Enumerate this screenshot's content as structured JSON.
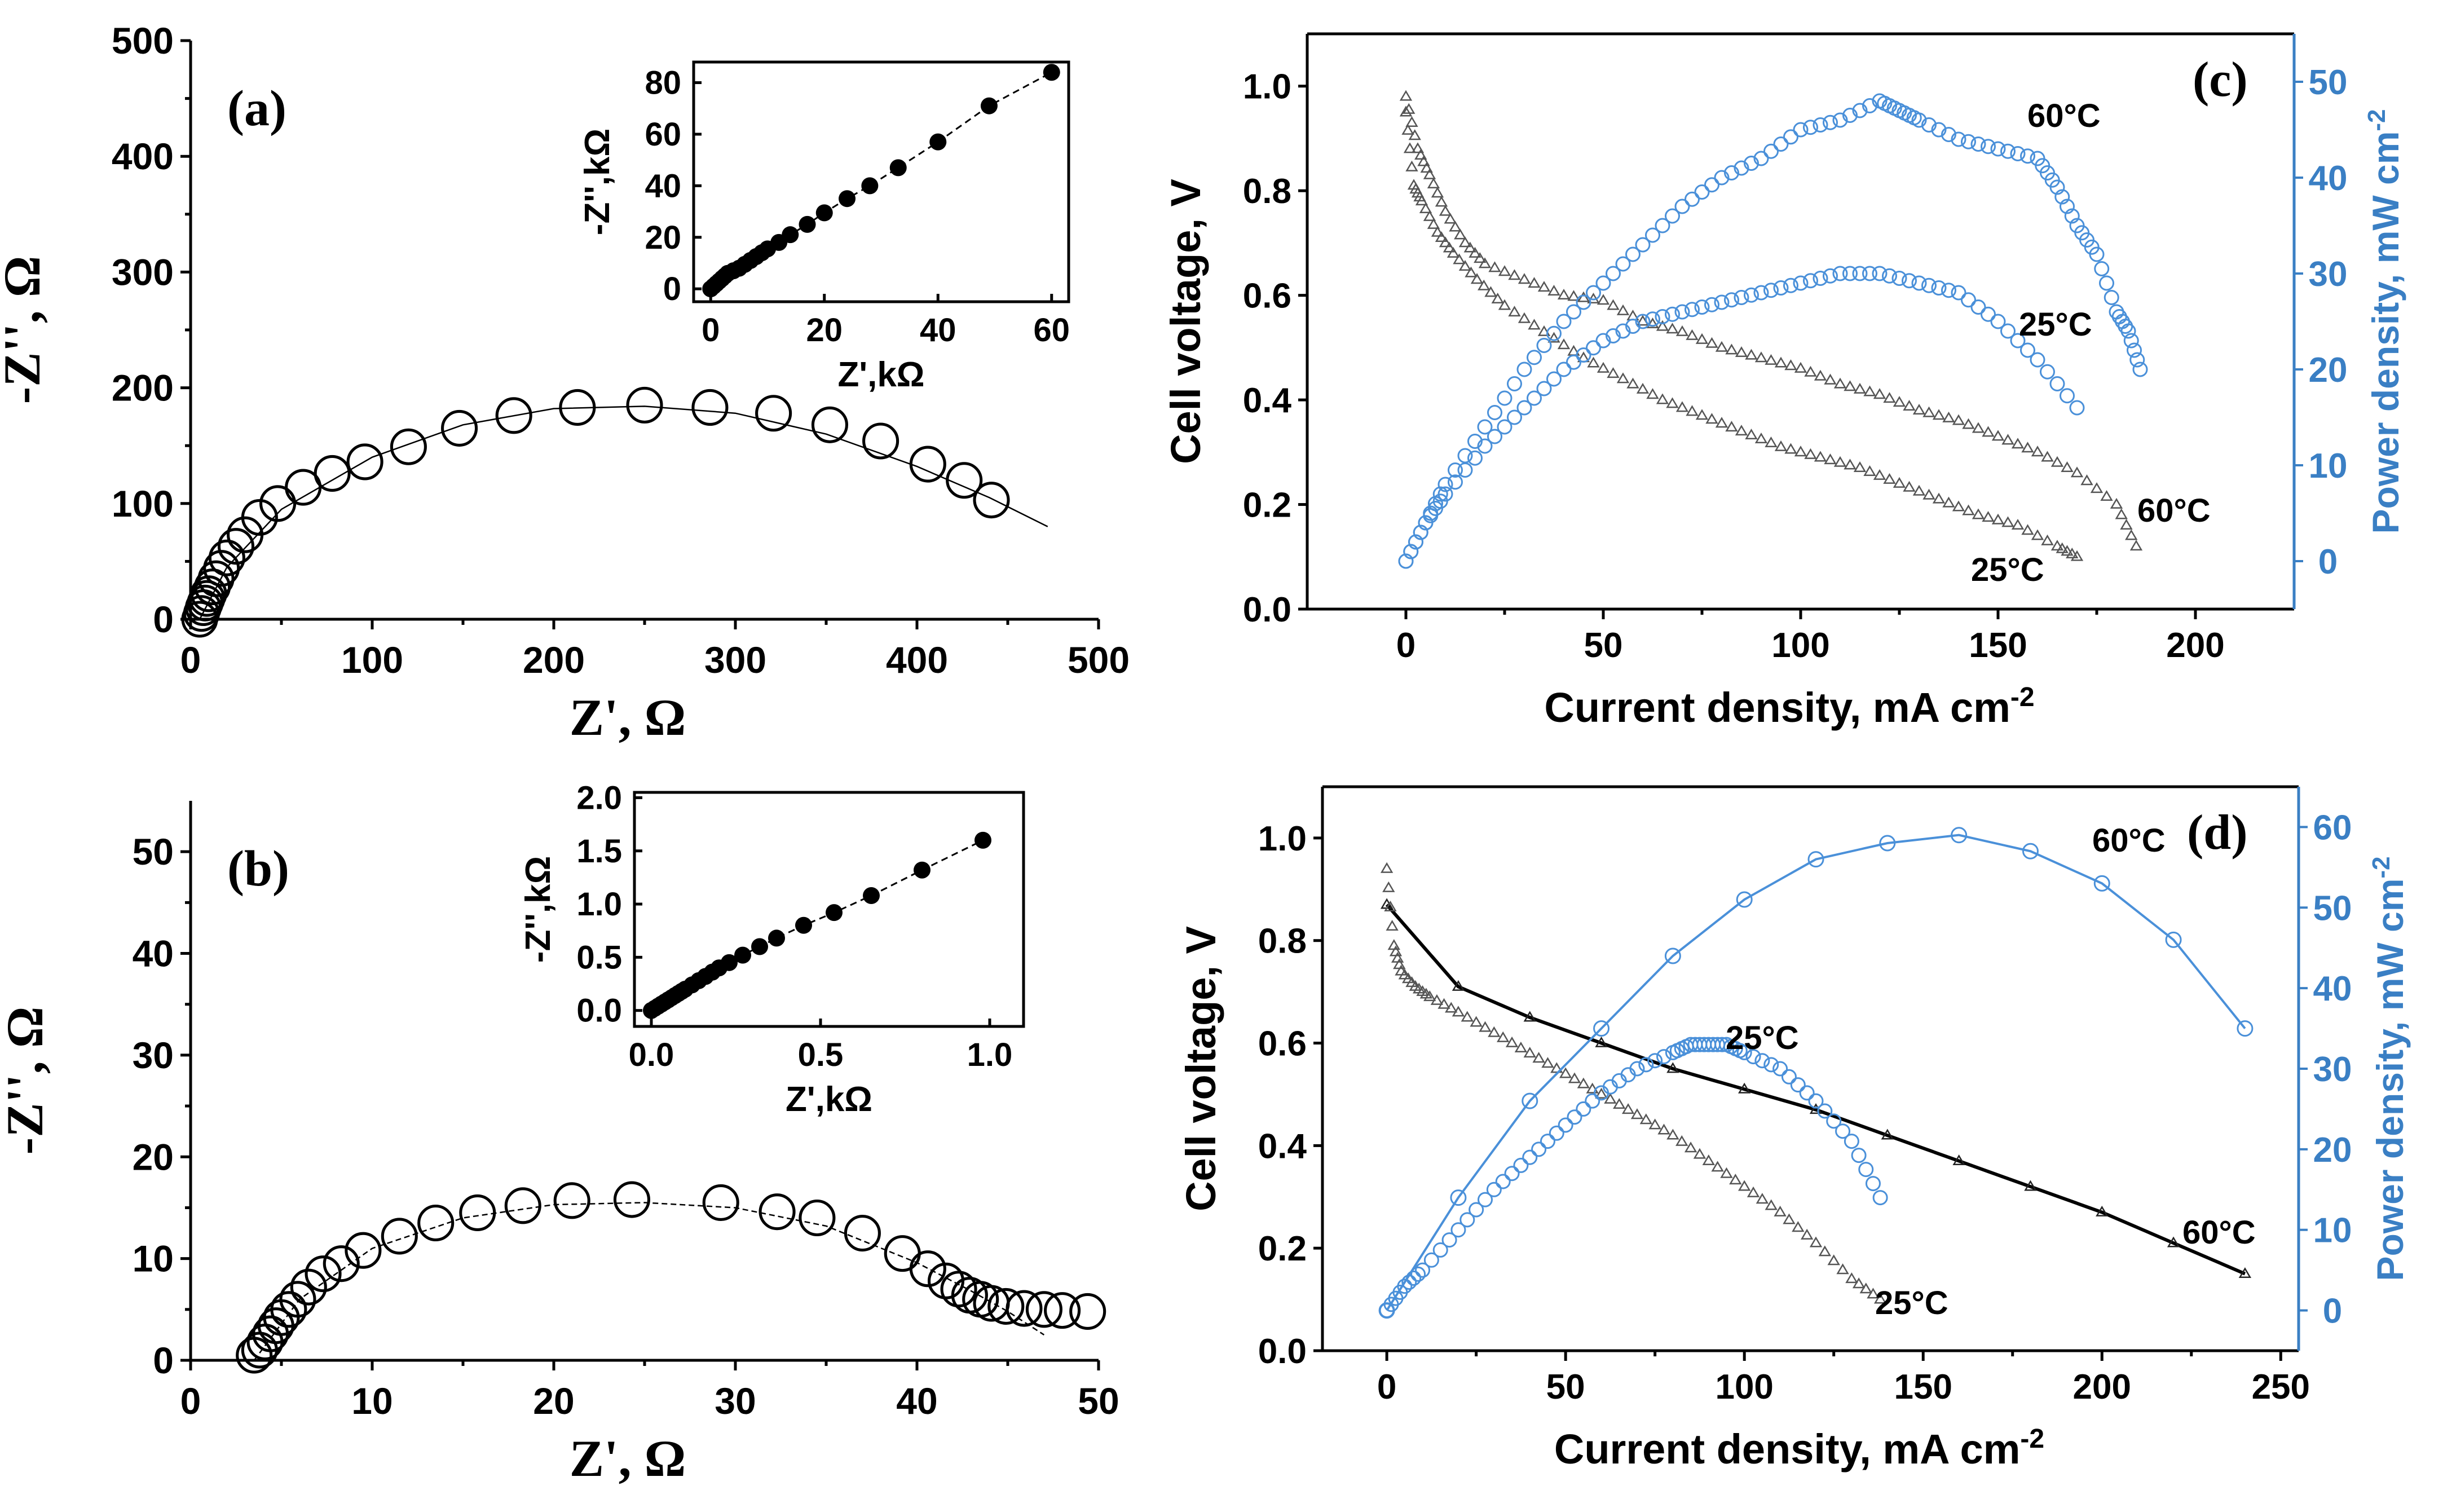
{
  "colors": {
    "black": "#000000",
    "blue": "#4a90d9",
    "blue_axis": "#3a7fc4",
    "gray": "#555555"
  },
  "chart_data": [
    {
      "id": "a",
      "type": "scatter",
      "panel_label": "(a)",
      "xlabel": "Z', Ω",
      "ylabel": "-Z'', Ω",
      "xlim": [
        0,
        500
      ],
      "ylim": [
        0,
        500
      ],
      "xticks": [
        "0",
        "100",
        "200",
        "300",
        "400",
        "500"
      ],
      "yticks": [
        "0",
        "100",
        "200",
        "300",
        "400",
        "500"
      ],
      "series": [
        {
          "marker": "open-circle",
          "x": [
            5,
            6,
            7,
            8,
            9,
            10,
            12,
            14,
            17,
            20,
            25,
            30,
            38,
            48,
            62,
            78,
            96,
            120,
            148,
            178,
            213,
            250,
            286,
            321,
            352,
            380,
            406,
            426,
            441
          ],
          "y": [
            0,
            5,
            10,
            14,
            18,
            22,
            28,
            35,
            44,
            53,
            63,
            73,
            88,
            100,
            114,
            126,
            136,
            149,
            165,
            176,
            183,
            185,
            183,
            178,
            168,
            154,
            134,
            120,
            103
          ]
        }
      ],
      "fit_line": {
        "x": [
          5,
          20,
          50,
          100,
          150,
          200,
          250,
          300,
          350,
          400,
          440,
          472
        ],
        "y": [
          0,
          45,
          95,
          140,
          168,
          182,
          184,
          178,
          160,
          132,
          105,
          80
        ]
      },
      "inset": {
        "xlabel": "Z',kΩ",
        "ylabel": "-Z'',kΩ",
        "xlim": [
          -3,
          63
        ],
        "ylim": [
          -5,
          88
        ],
        "xticks": [
          "0",
          "20",
          "40",
          "60"
        ],
        "yticks": [
          "0",
          "20",
          "40",
          "60",
          "80"
        ],
        "x": [
          0,
          0.5,
          1,
          1.5,
          2,
          2.5,
          3,
          4,
          5,
          6,
          7,
          8,
          9,
          10,
          12,
          14,
          17,
          20,
          24,
          28,
          33,
          40,
          49,
          60
        ],
        "y": [
          0,
          1,
          2,
          3,
          4,
          5,
          6,
          7,
          8,
          9.5,
          11,
          12.5,
          14,
          15.5,
          18,
          21,
          25,
          29.5,
          35,
          40,
          47,
          57,
          71,
          84
        ]
      }
    },
    {
      "id": "b",
      "type": "scatter",
      "panel_label": "(b)",
      "xlabel": "Z', Ω",
      "ylabel": "-Z'', Ω",
      "xlim": [
        0,
        50
      ],
      "ylim": [
        0,
        55
      ],
      "xticks": [
        "0",
        "10",
        "20",
        "30",
        "40",
        "50"
      ],
      "yticks": [
        "0",
        "10",
        "20",
        "30",
        "40",
        "50"
      ],
      "series": [
        {
          "marker": "open-circle",
          "x": [
            3.5,
            3.8,
            4.1,
            4.4,
            4.7,
            5.0,
            5.4,
            5.9,
            6.5,
            7.3,
            8.3,
            9.5,
            11.5,
            13.5,
            15.8,
            18.3,
            21,
            24.3,
            29.2,
            32.3,
            34.5,
            37,
            39.2,
            40.6,
            41.6,
            42.3,
            42.9,
            43.5,
            44.1,
            44.9,
            45.9,
            47.0,
            48.0,
            49.4
          ],
          "y": [
            0.5,
            1,
            1.8,
            2.6,
            3.4,
            4.2,
            5.0,
            6.0,
            7.2,
            8.5,
            9.5,
            10.8,
            12.2,
            13.5,
            14.5,
            15.2,
            15.7,
            15.8,
            15.5,
            14.6,
            14.0,
            12.5,
            10.5,
            9.0,
            7.8,
            7.0,
            6.4,
            6.0,
            5.6,
            5.3,
            5.1,
            5.0,
            4.9,
            4.8
          ]
        }
      ],
      "fit_line": {
        "x": [
          3.5,
          6,
          10,
          15,
          20,
          25,
          30,
          35,
          40,
          43,
          45,
          47
        ],
        "y": [
          0,
          6,
          11,
          14,
          15.3,
          15.5,
          15,
          13.2,
          9.6,
          6.8,
          4.8,
          2.5
        ]
      },
      "inset": {
        "xlabel": "Z',kΩ",
        "ylabel": "-Z'',kΩ",
        "xlim": [
          -0.05,
          1.1
        ],
        "ylim": [
          -0.15,
          2.05
        ],
        "xticks": [
          "0.0",
          "0.5",
          "1.0"
        ],
        "yticks": [
          "0.0",
          "0.5",
          "1.0",
          "1.5",
          "2.0"
        ],
        "xtick_values": [
          0,
          0.5,
          1.0
        ],
        "ytick_values": [
          0,
          0.5,
          1.0,
          1.5,
          2.0
        ],
        "x": [
          0,
          0.01,
          0.02,
          0.03,
          0.04,
          0.05,
          0.06,
          0.07,
          0.08,
          0.09,
          0.1,
          0.12,
          0.14,
          0.16,
          0.18,
          0.2,
          0.23,
          0.27,
          0.32,
          0.37,
          0.45,
          0.54,
          0.65,
          0.8,
          0.98
        ],
        "y": [
          0,
          0.02,
          0.04,
          0.06,
          0.08,
          0.1,
          0.12,
          0.14,
          0.16,
          0.18,
          0.2,
          0.24,
          0.28,
          0.32,
          0.36,
          0.4,
          0.45,
          0.52,
          0.6,
          0.68,
          0.8,
          0.92,
          1.08,
          1.32,
          1.6
        ]
      }
    },
    {
      "id": "c",
      "type": "scatter",
      "panel_label": "(c)",
      "xlabel": "Current density, mA cm",
      "xlabel_sup": "-2",
      "ylabel": "Cell voltage, V",
      "y2label": "Power density, mW cm",
      "y2label_sup": "-2",
      "xlim": [
        -25,
        225
      ],
      "ylim": [
        0,
        1.1
      ],
      "y2lim": [
        -5,
        55
      ],
      "xticks": [
        "0",
        "50",
        "100",
        "150",
        "200"
      ],
      "yticks": [
        "0.0",
        "0.2",
        "0.4",
        "0.6",
        "0.8",
        "1.0"
      ],
      "y2ticks": [
        "0",
        "10",
        "20",
        "30",
        "40",
        "50"
      ],
      "annotations": [
        "60°C",
        "25°C",
        "60°C",
        "25°C"
      ],
      "series": [
        {
          "name": "60°C voltage",
          "axis": "left",
          "marker": "open-triangle",
          "x": [
            0,
            3,
            6,
            10,
            15,
            20,
            30,
            40,
            50,
            60,
            70,
            80,
            90,
            100,
            110,
            120,
            130,
            140,
            150,
            160,
            170,
            180,
            185
          ],
          "y": [
            0.98,
            0.88,
            0.83,
            0.76,
            0.7,
            0.66,
            0.63,
            0.6,
            0.59,
            0.55,
            0.53,
            0.5,
            0.48,
            0.46,
            0.43,
            0.41,
            0.38,
            0.36,
            0.33,
            0.3,
            0.26,
            0.2,
            0.12
          ]
        },
        {
          "name": "25°C voltage",
          "axis": "left",
          "marker": "open-triangle",
          "x": [
            0,
            2,
            4,
            8,
            12,
            18,
            25,
            35,
            45,
            55,
            65,
            75,
            85,
            95,
            105,
            115,
            125,
            135,
            145,
            155,
            165,
            170
          ],
          "y": [
            0.95,
            0.81,
            0.78,
            0.72,
            0.68,
            0.63,
            0.58,
            0.53,
            0.48,
            0.44,
            0.4,
            0.37,
            0.34,
            0.31,
            0.29,
            0.27,
            0.24,
            0.21,
            0.18,
            0.16,
            0.12,
            0.1
          ]
        },
        {
          "name": "60°C power",
          "axis": "right",
          "marker": "open-circle",
          "color": "#4a90d9",
          "x": [
            0,
            5,
            10,
            20,
            30,
            40,
            50,
            60,
            70,
            80,
            90,
            100,
            110,
            120,
            125,
            130,
            140,
            150,
            160,
            165,
            170,
            175,
            180,
            183,
            186
          ],
          "y": [
            0,
            4,
            8,
            14,
            20,
            25,
            29,
            33,
            37,
            40,
            42,
            45,
            46,
            48,
            47,
            46,
            44,
            43,
            42,
            39,
            35,
            32,
            26,
            24,
            20
          ]
        },
        {
          "name": "25°C power",
          "axis": "right",
          "marker": "open-circle",
          "color": "#4a90d9",
          "x": [
            0,
            5,
            10,
            20,
            30,
            40,
            50,
            60,
            70,
            80,
            90,
            100,
            110,
            120,
            130,
            140,
            150,
            160,
            170
          ],
          "y": [
            0,
            4,
            7,
            12,
            16,
            20,
            23,
            25,
            26,
            27,
            28,
            29,
            30,
            30,
            29,
            28,
            25,
            21,
            16
          ]
        }
      ]
    },
    {
      "id": "d",
      "type": "scatter",
      "panel_label": "(d)",
      "xlabel": "Current density, mA cm",
      "xlabel_sup": "-2",
      "ylabel": "Cell voltage, V",
      "y2label": "Power density, mW cm",
      "y2label_sup": "-2",
      "xlim": [
        -18,
        255
      ],
      "ylim": [
        0,
        1.1
      ],
      "y2lim": [
        -5,
        65
      ],
      "xticks": [
        "0",
        "50",
        "100",
        "150",
        "200",
        "250"
      ],
      "yticks": [
        "0.0",
        "0.2",
        "0.4",
        "0.6",
        "0.8",
        "1.0"
      ],
      "y2ticks": [
        "0",
        "10",
        "20",
        "30",
        "40",
        "50",
        "60"
      ],
      "annotations": [
        "60°C",
        "25°C",
        "60°C",
        "25°C"
      ],
      "series": [
        {
          "name": "60°C voltage",
          "axis": "left",
          "marker": "open-triangle",
          "line": true,
          "x": [
            0,
            20,
            40,
            60,
            80,
            100,
            120,
            140,
            160,
            180,
            200,
            220,
            240
          ],
          "y": [
            0.87,
            0.71,
            0.65,
            0.6,
            0.55,
            0.51,
            0.47,
            0.42,
            0.37,
            0.32,
            0.27,
            0.21,
            0.15
          ]
        },
        {
          "name": "25°C voltage",
          "axis": "left",
          "marker": "open-triangle",
          "x": [
            0,
            2,
            4,
            8,
            12,
            20,
            30,
            40,
            50,
            60,
            70,
            80,
            90,
            100,
            110,
            120,
            130,
            138
          ],
          "y": [
            0.94,
            0.79,
            0.74,
            0.71,
            0.69,
            0.66,
            0.62,
            0.58,
            0.54,
            0.5,
            0.46,
            0.42,
            0.37,
            0.32,
            0.27,
            0.21,
            0.14,
            0.1
          ]
        },
        {
          "name": "60°C power",
          "axis": "right",
          "marker": "open-circle",
          "line": true,
          "color": "#4a90d9",
          "x": [
            0,
            20,
            40,
            60,
            80,
            100,
            120,
            140,
            160,
            180,
            200,
            220,
            240
          ],
          "y": [
            0,
            14,
            26,
            35,
            44,
            51,
            56,
            58,
            59,
            57,
            53,
            46,
            35
          ]
        },
        {
          "name": "25°C power",
          "axis": "right",
          "marker": "open-circle",
          "color": "#4a90d9",
          "x": [
            0,
            5,
            10,
            20,
            30,
            40,
            50,
            60,
            70,
            80,
            85,
            90,
            95,
            100,
            110,
            120,
            130,
            138
          ],
          "y": [
            0,
            3,
            5,
            10,
            15,
            19,
            23,
            27,
            30,
            32,
            33,
            33,
            33,
            32,
            30,
            26,
            21,
            14
          ]
        }
      ]
    }
  ]
}
